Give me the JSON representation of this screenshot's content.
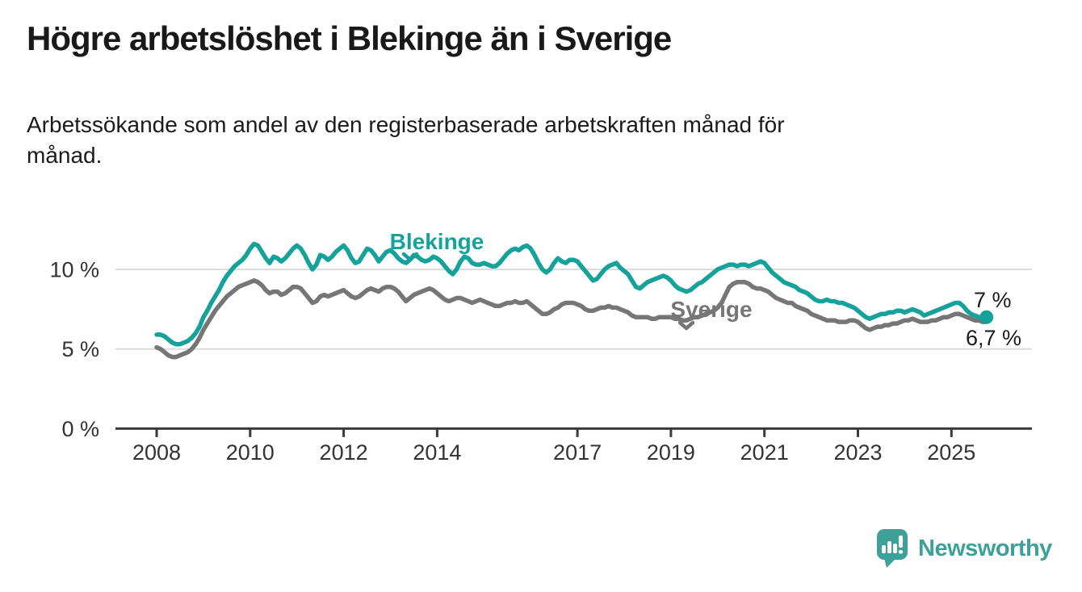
{
  "header": {
    "title": "Högre arbetslöshet i Blekinge än i Sverige",
    "subtitle": "Arbetssökande som andel av den registerbaserade arbetskraften månad för månad.",
    "subtitle_lines": [
      "Arbetssökande som andel av den registerbaserade arbetskraften månad för",
      "månad."
    ]
  },
  "chart_data": {
    "type": "line",
    "title": "Högre arbetslöshet i Blekinge än i Sverige",
    "x_unit": "month",
    "x_start": "2008-01",
    "x_end": "2025-10",
    "ylim": [
      0,
      12.5
    ],
    "grid": "horizontal",
    "colors": {
      "blekinge": "#15a29a",
      "sverige": "#767676",
      "gridline": "#dcdcdc",
      "axis": "#3a3a3a",
      "text": "#1a1a1a"
    },
    "yticks": [
      {
        "value": 0,
        "label": "0 %"
      },
      {
        "value": 5,
        "label": "5 %"
      },
      {
        "value": 10,
        "label": "10 %"
      }
    ],
    "xticks": [
      {
        "value": 2008,
        "label": "2008"
      },
      {
        "value": 2010,
        "label": "2010"
      },
      {
        "value": 2012,
        "label": "2012"
      },
      {
        "value": 2014,
        "label": "2014"
      },
      {
        "value": 2017,
        "label": "2017"
      },
      {
        "value": 2019,
        "label": "2019"
      },
      {
        "value": 2021,
        "label": "2021"
      },
      {
        "value": 2023,
        "label": "2023"
      },
      {
        "value": 2025,
        "label": "2025"
      }
    ],
    "series": [
      {
        "name": "Sverige",
        "color": "#767676",
        "inline_label": "Sverige",
        "end_label": "6,7 %",
        "end_value": 6.7,
        "end_dot": false,
        "values": [
          5.1,
          5.0,
          4.8,
          4.6,
          4.5,
          4.5,
          4.6,
          4.7,
          4.8,
          5.0,
          5.3,
          5.7,
          6.2,
          6.6,
          7.0,
          7.4,
          7.7,
          8.0,
          8.3,
          8.5,
          8.7,
          8.9,
          9.0,
          9.1,
          9.2,
          9.3,
          9.2,
          9.0,
          8.7,
          8.5,
          8.6,
          8.6,
          8.4,
          8.5,
          8.7,
          8.9,
          8.9,
          8.8,
          8.5,
          8.2,
          7.9,
          8.0,
          8.3,
          8.4,
          8.3,
          8.4,
          8.5,
          8.6,
          8.7,
          8.5,
          8.3,
          8.2,
          8.3,
          8.5,
          8.7,
          8.8,
          8.7,
          8.6,
          8.8,
          8.9,
          8.9,
          8.8,
          8.6,
          8.3,
          8.0,
          8.2,
          8.4,
          8.5,
          8.6,
          8.7,
          8.8,
          8.7,
          8.5,
          8.3,
          8.1,
          8.0,
          8.1,
          8.2,
          8.2,
          8.1,
          8.0,
          7.9,
          8.0,
          8.1,
          8.0,
          7.9,
          7.8,
          7.7,
          7.7,
          7.8,
          7.9,
          7.9,
          8.0,
          7.9,
          7.9,
          8.0,
          7.8,
          7.6,
          7.4,
          7.2,
          7.2,
          7.3,
          7.5,
          7.6,
          7.8,
          7.9,
          7.9,
          7.9,
          7.8,
          7.7,
          7.5,
          7.4,
          7.4,
          7.5,
          7.6,
          7.6,
          7.7,
          7.6,
          7.6,
          7.5,
          7.4,
          7.3,
          7.1,
          7.0,
          7.0,
          7.0,
          7.0,
          6.9,
          6.9,
          7.0,
          7.0,
          7.0,
          7.0,
          6.9,
          6.9,
          6.8,
          6.8,
          6.9,
          7.0,
          7.0,
          7.1,
          7.2,
          7.3,
          7.4,
          7.6,
          7.9,
          8.4,
          8.9,
          9.1,
          9.2,
          9.2,
          9.2,
          9.1,
          8.9,
          8.8,
          8.8,
          8.7,
          8.6,
          8.4,
          8.2,
          8.1,
          8.0,
          7.9,
          7.9,
          7.7,
          7.6,
          7.5,
          7.4,
          7.2,
          7.1,
          7.0,
          6.9,
          6.8,
          6.8,
          6.8,
          6.7,
          6.7,
          6.7,
          6.8,
          6.8,
          6.7,
          6.5,
          6.3,
          6.2,
          6.3,
          6.4,
          6.4,
          6.5,
          6.5,
          6.6,
          6.6,
          6.7,
          6.8,
          6.8,
          6.9,
          6.8,
          6.7,
          6.7,
          6.7,
          6.8,
          6.8,
          6.9,
          7.0,
          7.0,
          7.1,
          7.2,
          7.2,
          7.1,
          7.0,
          6.9,
          6.8,
          6.8,
          6.7,
          6.7
        ]
      },
      {
        "name": "Blekinge",
        "color": "#15a29a",
        "inline_label": "Blekinge",
        "end_label": "7 %",
        "end_value": 7.0,
        "end_dot": true,
        "values": [
          5.9,
          5.9,
          5.8,
          5.6,
          5.4,
          5.3,
          5.3,
          5.4,
          5.5,
          5.7,
          6.0,
          6.4,
          7.0,
          7.4,
          7.9,
          8.3,
          8.7,
          9.2,
          9.6,
          9.9,
          10.2,
          10.4,
          10.6,
          10.9,
          11.3,
          11.6,
          11.5,
          11.1,
          10.7,
          10.4,
          10.8,
          10.7,
          10.5,
          10.7,
          11.0,
          11.3,
          11.5,
          11.3,
          10.9,
          10.4,
          10.0,
          10.3,
          10.9,
          10.8,
          10.6,
          10.8,
          11.1,
          11.3,
          11.5,
          11.2,
          10.7,
          10.4,
          10.5,
          10.9,
          11.3,
          11.2,
          10.9,
          10.5,
          10.8,
          11.1,
          11.2,
          11.0,
          10.7,
          10.5,
          10.4,
          10.6,
          10.9,
          10.8,
          10.6,
          10.5,
          10.6,
          10.8,
          10.7,
          10.5,
          10.2,
          9.9,
          9.7,
          10.0,
          10.5,
          10.8,
          10.7,
          10.4,
          10.3,
          10.3,
          10.4,
          10.3,
          10.2,
          10.2,
          10.4,
          10.7,
          11.0,
          11.2,
          11.3,
          11.2,
          11.4,
          11.5,
          11.3,
          10.9,
          10.4,
          10.0,
          9.8,
          10.0,
          10.4,
          10.7,
          10.5,
          10.4,
          10.6,
          10.6,
          10.5,
          10.2,
          9.9,
          9.6,
          9.3,
          9.4,
          9.7,
          10.0,
          10.2,
          10.3,
          10.4,
          10.1,
          9.9,
          9.7,
          9.3,
          8.9,
          8.8,
          9.0,
          9.2,
          9.3,
          9.4,
          9.5,
          9.6,
          9.5,
          9.3,
          9.0,
          8.8,
          8.7,
          8.6,
          8.7,
          8.9,
          9.1,
          9.2,
          9.4,
          9.6,
          9.8,
          10.0,
          10.1,
          10.2,
          10.3,
          10.3,
          10.2,
          10.3,
          10.3,
          10.2,
          10.3,
          10.4,
          10.5,
          10.4,
          10.1,
          9.8,
          9.6,
          9.4,
          9.2,
          9.1,
          9.0,
          8.9,
          8.7,
          8.6,
          8.5,
          8.3,
          8.1,
          8.0,
          8.0,
          8.1,
          8.0,
          8.0,
          7.9,
          7.9,
          7.8,
          7.7,
          7.6,
          7.4,
          7.2,
          7.0,
          6.9,
          7.0,
          7.1,
          7.2,
          7.2,
          7.3,
          7.3,
          7.4,
          7.4,
          7.3,
          7.4,
          7.5,
          7.4,
          7.3,
          7.1,
          7.2,
          7.3,
          7.4,
          7.5,
          7.6,
          7.7,
          7.8,
          7.9,
          7.9,
          7.7,
          7.4,
          7.2,
          7.1,
          7.0,
          7.0,
          7.0
        ]
      }
    ]
  },
  "footer": {
    "brand": "Newsworthy"
  }
}
